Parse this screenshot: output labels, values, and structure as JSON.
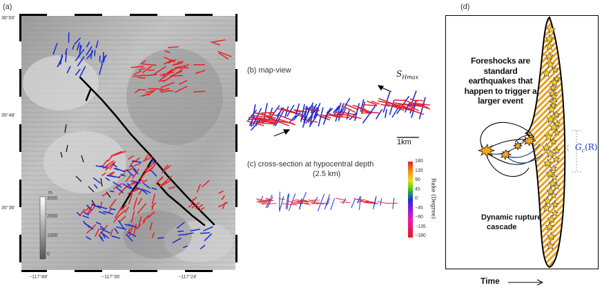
{
  "panels": {
    "a": {
      "label": "(a)",
      "lat_ticks": [
        "36°00'",
        "35°48'",
        "35°36'"
      ],
      "lon_ticks": [
        "−117°48'",
        "−117°36'",
        "−117°24'"
      ],
      "elevation_scale": {
        "unit": "m",
        "ticks": [
          "3000",
          "2000",
          "1000",
          "0"
        ]
      }
    },
    "b": {
      "label": "(b) map-view",
      "stress_label": "S",
      "stress_subscript": "Hmax",
      "scale_bar": "1km"
    },
    "c": {
      "label": "(c) cross-section at hypocentral depth",
      "sublabel": "(2.5 km)",
      "colorbar": {
        "title": "Rake (Degree)",
        "ticks": [
          "180",
          "135",
          "90",
          "45",
          "0",
          "−45",
          "−90",
          "−135",
          "−180"
        ]
      }
    },
    "d": {
      "label": "(d)",
      "foreshock_text": [
        "Foreshocks are",
        "standard",
        "earthquakes that",
        "happen to trigger a",
        "larger event"
      ],
      "gc_label": "G",
      "gc_sub": "c",
      "gc_arg": "(R)",
      "cascade_text": [
        "Dynamic rupture",
        "cascade"
      ],
      "time_label": "Time"
    }
  },
  "colors": {
    "red_fault": "#e8232a",
    "blue_fault": "#1b2fd6",
    "black_fault": "#000000",
    "gc_blue": "#2233bb",
    "rupture_orange": "#e8a020"
  }
}
